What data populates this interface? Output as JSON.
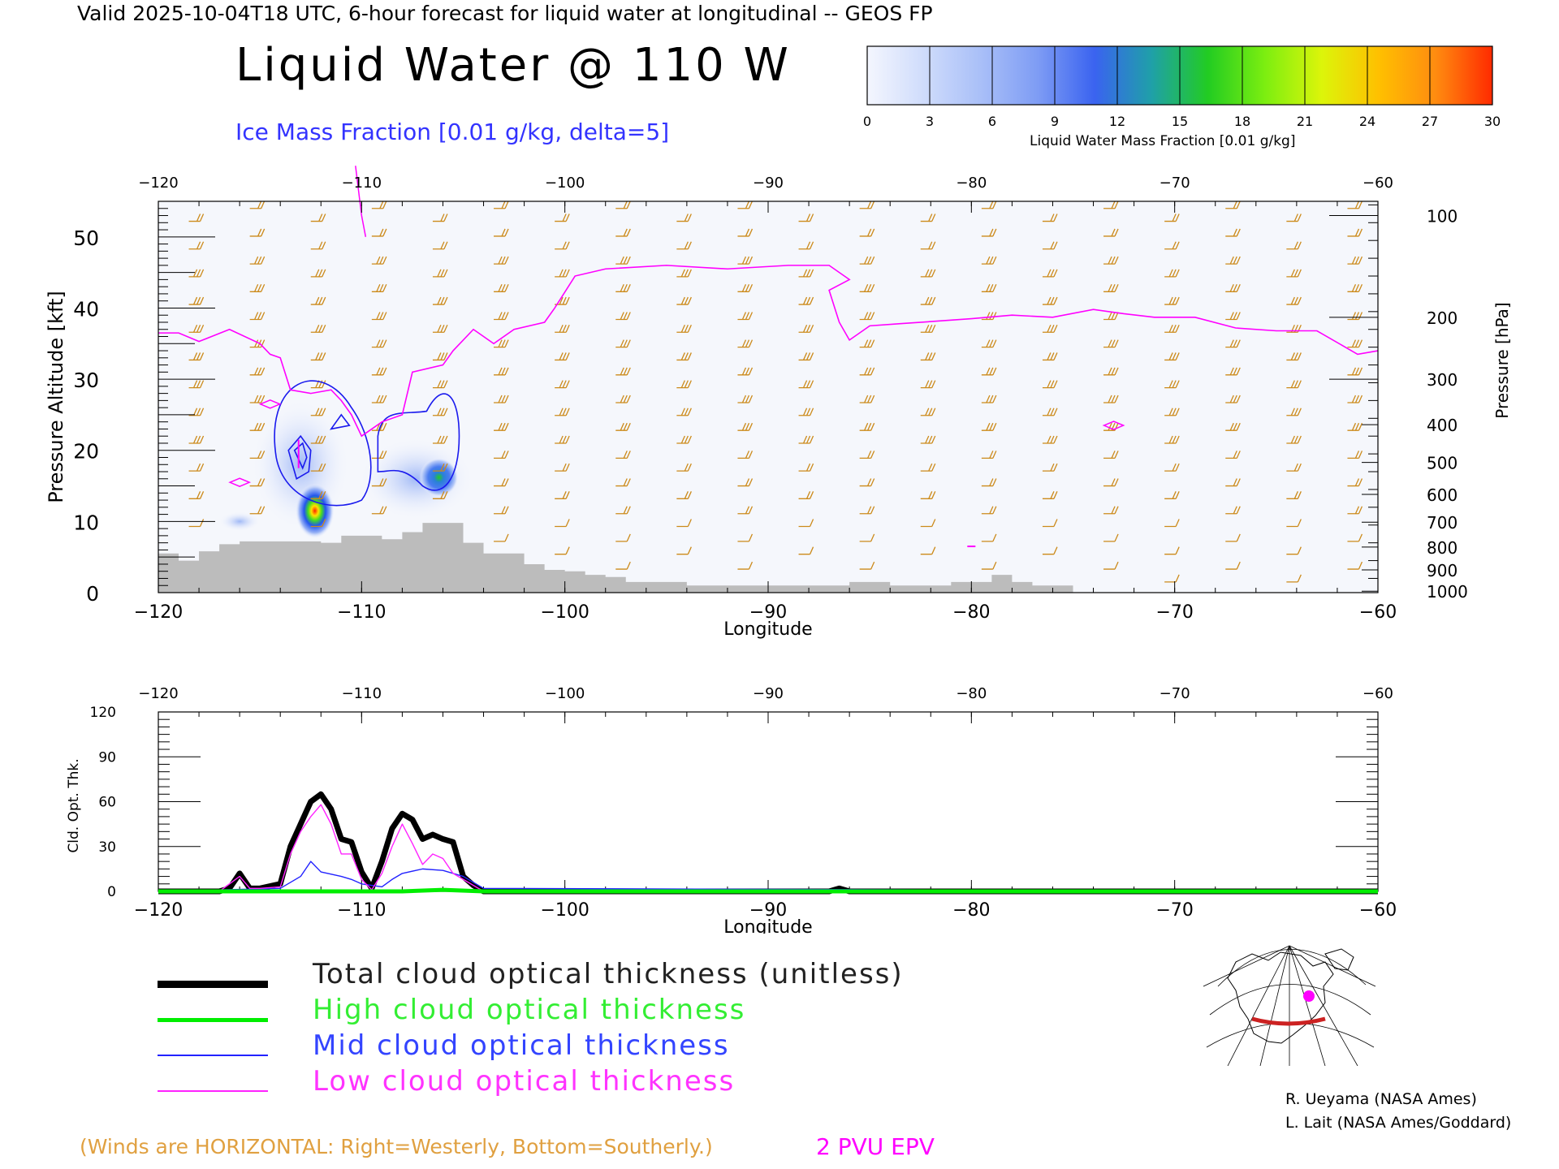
{
  "header": {
    "valid_line": "Valid 2025-10-04T18 UTC, 6-hour forecast for liquid water at longitudinal -- GEOS FP",
    "title": "Liquid Water @ 110 W",
    "ice_label": "Ice Mass Fraction [0.01 g/kg, delta=5]"
  },
  "colorbar": {
    "ticks": [
      "0",
      "3",
      "6",
      "9",
      "12",
      "15",
      "18",
      "21",
      "24",
      "27",
      "30"
    ],
    "caption": "Liquid Water Mass Fraction [0.01 g/kg]",
    "colors": [
      "#f4f6fe",
      "#cfdcfb",
      "#a9bff8",
      "#7e9cf4",
      "#3a63f0",
      "#1fa0a8",
      "#22cc22",
      "#7cee10",
      "#dcf50a",
      "#ffc000",
      "#ff8c10",
      "#ff2a00"
    ]
  },
  "chart_data": [
    {
      "type": "contour-section",
      "xlabel": "Longitude",
      "ylabel": "Pressure Altitude [kft]",
      "y2label": "Pressure [hPa]",
      "xlim": [
        -120,
        -60
      ],
      "ylim": [
        0,
        55
      ],
      "x_ticks": [
        "-120",
        "-110",
        "-100",
        "-90",
        "-80",
        "-70",
        "-60"
      ],
      "y_ticks": [
        "0",
        "10",
        "20",
        "30",
        "40",
        "50"
      ],
      "pressure_ticks": [
        {
          "label": "100",
          "kft": 53
        },
        {
          "label": "200",
          "kft": 38.7
        },
        {
          "label": "300",
          "kft": 30
        },
        {
          "label": "400",
          "kft": 23.6
        },
        {
          "label": "500",
          "kft": 18.3
        },
        {
          "label": "600",
          "kft": 13.8
        },
        {
          "label": "700",
          "kft": 9.9
        },
        {
          "label": "800",
          "kft": 6.4
        },
        {
          "label": "900",
          "kft": 3.2
        },
        {
          "label": "1000",
          "kft": 0.2
        }
      ],
      "terrain_kft": [
        {
          "lon": -120,
          "h": 5.5
        },
        {
          "lon": -119,
          "h": 4.5
        },
        {
          "lon": -118,
          "h": 5.8
        },
        {
          "lon": -117,
          "h": 6.8
        },
        {
          "lon": -116,
          "h": 7.2
        },
        {
          "lon": -115,
          "h": 7.2
        },
        {
          "lon": -114,
          "h": 7.2
        },
        {
          "lon": -113,
          "h": 7.2
        },
        {
          "lon": -112,
          "h": 7.0
        },
        {
          "lon": -111,
          "h": 8.0
        },
        {
          "lon": -110,
          "h": 8.0
        },
        {
          "lon": -109,
          "h": 7.5
        },
        {
          "lon": -108,
          "h": 8.5
        },
        {
          "lon": -107,
          "h": 9.8
        },
        {
          "lon": -106,
          "h": 9.8
        },
        {
          "lon": -105,
          "h": 7.0
        },
        {
          "lon": -104,
          "h": 5.5
        },
        {
          "lon": -103,
          "h": 5.5
        },
        {
          "lon": -102,
          "h": 4.0
        },
        {
          "lon": -101,
          "h": 3.2
        },
        {
          "lon": -100,
          "h": 3.0
        },
        {
          "lon": -99,
          "h": 2.5
        },
        {
          "lon": -98,
          "h": 2.2
        },
        {
          "lon": -97,
          "h": 1.5
        },
        {
          "lon": -96,
          "h": 1.5
        },
        {
          "lon": -95,
          "h": 1.5
        },
        {
          "lon": -94,
          "h": 1.0
        },
        {
          "lon": -93,
          "h": 1.0
        },
        {
          "lon": -92,
          "h": 1.0
        },
        {
          "lon": -91,
          "h": 1.0
        },
        {
          "lon": -90,
          "h": 1.0
        },
        {
          "lon": -89,
          "h": 1.0
        },
        {
          "lon": -88,
          "h": 1.0
        },
        {
          "lon": -87,
          "h": 1.0
        },
        {
          "lon": -86,
          "h": 1.5
        },
        {
          "lon": -85,
          "h": 1.5
        },
        {
          "lon": -84,
          "h": 1.0
        },
        {
          "lon": -83,
          "h": 1.0
        },
        {
          "lon": -82,
          "h": 1.0
        },
        {
          "lon": -81,
          "h": 1.5
        },
        {
          "lon": -80,
          "h": 1.5
        },
        {
          "lon": -79,
          "h": 2.5
        },
        {
          "lon": -78,
          "h": 1.5
        },
        {
          "lon": -77,
          "h": 1.0
        },
        {
          "lon": -76,
          "h": 1.0
        },
        {
          "lon": -75,
          "h": 0
        }
      ],
      "pvu2_epv_kft": [
        [
          -120,
          36.5
        ],
        [
          -119,
          36.5
        ],
        [
          -118,
          35.3
        ],
        [
          -116.5,
          37
        ],
        [
          -115,
          35
        ],
        [
          -114.5,
          33.5
        ],
        [
          -114,
          33
        ],
        [
          -113.5,
          28.5
        ],
        [
          -112.5,
          28
        ],
        [
          -111.5,
          28.5
        ],
        [
          -111,
          27
        ],
        [
          -110.5,
          25
        ],
        [
          -110,
          22
        ],
        [
          -109.5,
          23
        ],
        [
          -109,
          24
        ],
        [
          -108,
          25
        ],
        [
          -107.5,
          31
        ],
        [
          -106,
          32
        ],
        [
          -105.5,
          34
        ],
        [
          -104.5,
          37
        ],
        [
          -103.5,
          35
        ],
        [
          -102.5,
          37
        ],
        [
          -101,
          38
        ],
        [
          -100.5,
          40
        ],
        [
          -99.5,
          44.5
        ],
        [
          -98,
          45.5
        ],
        [
          -95,
          46
        ],
        [
          -92,
          45.5
        ],
        [
          -89,
          46
        ],
        [
          -87,
          46
        ],
        [
          -86,
          44
        ],
        [
          -87,
          42.5
        ],
        [
          -86.5,
          38
        ],
        [
          -86,
          35.5
        ],
        [
          -85,
          37.5
        ],
        [
          -83.5,
          37.8
        ],
        [
          -80,
          38.5
        ],
        [
          -78,
          39
        ],
        [
          -76,
          38.7
        ],
        [
          -74,
          39.8
        ],
        [
          -72.5,
          39.2
        ],
        [
          -71,
          38.7
        ],
        [
          -69,
          38.7
        ],
        [
          -67,
          37.2
        ],
        [
          -65,
          36.8
        ],
        [
          -63,
          36.8
        ],
        [
          -61,
          33.5
        ],
        [
          -60,
          34
        ]
      ],
      "pvu2_epv_islands": [
        {
          "lon": -114.5,
          "kft": 26.5
        },
        {
          "lon": -116,
          "kft": 15.5
        },
        {
          "lon": -73,
          "kft": 23.5
        }
      ],
      "liquid_water_blobs": [
        {
          "lon": -112.3,
          "kft": 11.5,
          "max": 27
        },
        {
          "lon": -106.2,
          "kft": 16.2,
          "max": 15
        }
      ],
      "ice_mass_centers": [
        {
          "lon": -113.1,
          "kft": 19.5,
          "max": 20
        },
        {
          "lon": -106.8,
          "kft": 19.0,
          "max": 5
        }
      ]
    },
    {
      "type": "line",
      "xlabel": "Longitude",
      "ylabel": "Cld. Opt. Thk.",
      "xlim": [
        -120,
        -60
      ],
      "ylim": [
        0,
        120
      ],
      "x_ticks": [
        "-120",
        "-110",
        "-100",
        "-90",
        "-80",
        "-70",
        "-60"
      ],
      "y_ticks": [
        "0",
        "30",
        "60",
        "90",
        "120"
      ],
      "series": [
        {
          "name": "Total cloud optical thickness (unitless)",
          "color": "#000000",
          "x": [
            -120,
            -117,
            -116.5,
            -116,
            -115.5,
            -115,
            -114,
            -113.5,
            -113,
            -112.5,
            -112,
            -111.5,
            -111,
            -110.5,
            -110,
            -109.5,
            -109,
            -108.5,
            -108,
            -107.5,
            -107,
            -106.5,
            -106,
            -105.5,
            -105,
            -104.5,
            -104,
            -90,
            -87,
            -86.5,
            -86,
            -84,
            -60
          ],
          "y": [
            0,
            0,
            2,
            12,
            2,
            2,
            5,
            30,
            45,
            60,
            65,
            55,
            35,
            33,
            13,
            2,
            20,
            42,
            52,
            48,
            35,
            38,
            35,
            33,
            10,
            4,
            0,
            0,
            0,
            2,
            0,
            0,
            0
          ]
        },
        {
          "name": "High cloud optical thickness",
          "color": "#00ee00",
          "x": [
            -120,
            -108,
            -106,
            -104,
            -60
          ],
          "y": [
            0,
            0,
            1,
            0,
            0
          ]
        },
        {
          "name": "Mid cloud optical thickness",
          "color": "#2222ff",
          "x": [
            -120,
            -114,
            -113,
            -112.5,
            -112,
            -111,
            -110.5,
            -110,
            -109,
            -108.5,
            -108,
            -107,
            -106,
            -105,
            -104,
            -60
          ],
          "y": [
            0,
            2,
            10,
            20,
            13,
            10,
            8,
            5,
            3,
            8,
            12,
            15,
            14,
            10,
            2,
            0
          ]
        },
        {
          "name": "Low cloud optical thickness",
          "color": "#ff22ff",
          "x": [
            -120,
            -117,
            -116,
            -115.5,
            -115,
            -114,
            -113.5,
            -113,
            -112.5,
            -112,
            -111.5,
            -111,
            -110.5,
            -110,
            -109.5,
            -109,
            -108.5,
            -108,
            -107.5,
            -107,
            -106.5,
            -106,
            -105.5,
            -105,
            -104,
            -60
          ],
          "y": [
            0,
            0,
            10,
            2,
            2,
            3,
            25,
            40,
            50,
            58,
            45,
            25,
            25,
            8,
            1,
            12,
            30,
            45,
            32,
            18,
            25,
            22,
            12,
            8,
            0,
            0
          ]
        }
      ]
    }
  ],
  "legend": {
    "items": [
      {
        "label": "Total cloud optical thickness (unitless)",
        "color": "#000000"
      },
      {
        "label": "High cloud optical thickness",
        "color": "#00ee00"
      },
      {
        "label": "Mid cloud optical thickness",
        "color": "#2222ff"
      },
      {
        "label": "Low cloud optical thickness",
        "color": "#ff22ff"
      }
    ]
  },
  "footer": {
    "winds_note": "(Winds are HORIZONTAL: Right=Westerly, Bottom=Southerly.)",
    "pvu_label": "2 PVU EPV",
    "credit_1": "R. Ueyama (NASA Ames)",
    "credit_2": "L. Lait (NASA Ames/Goddard)"
  },
  "colors": {
    "terrain": "#bcbcbc",
    "epv_line": "#ff00ff",
    "ice_contour": "#1a1aee",
    "wind_barb": "#cc8a1a",
    "section_path": "#cc2222",
    "location_marker": "#ff00ff"
  }
}
